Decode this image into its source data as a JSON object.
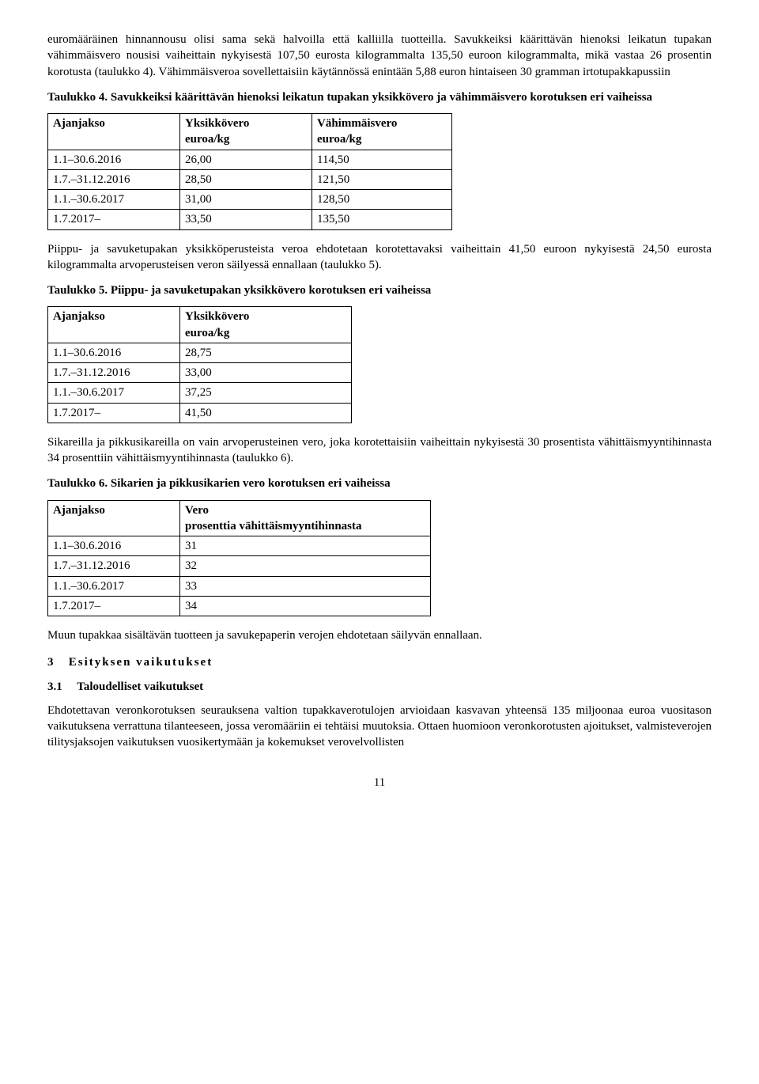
{
  "para1": "euromääräinen hinnannousu olisi sama sekä halvoilla että kalliilla tuotteilla. Savukkeiksi käärittävän hienoksi leikatun tupakan vähimmäisvero nousisi vaiheittain nykyisestä 107,50 eurosta kilogrammalta 135,50 euroon kilogrammalta, mikä vastaa 26 prosentin korotusta (taulukko 4). Vähimmäisveroa sovellettaisiin käytännössä enintään 5,88 euron hintaiseen 30 gramman irtotupakkapussiin",
  "table4": {
    "title": "Taulukko 4. Savukkeiksi käärittävän hienoksi leikatun tupakan yksikkövero ja vähimmäisvero korotuksen eri vaiheissa",
    "headers": [
      "Ajanjakso",
      "Yksikkövero euroa/kg",
      "Vähimmäisvero euroa/kg"
    ],
    "rows": [
      [
        "1.1–30.6.2016",
        "26,00",
        "114,50"
      ],
      [
        "1.7.–31.12.2016",
        "28,50",
        "121,50"
      ],
      [
        "1.1.–30.6.2017",
        "31,00",
        "128,50"
      ],
      [
        "1.7.2017–",
        "33,50",
        "135,50"
      ]
    ],
    "col_widths": [
      "150px",
      "150px",
      "160px"
    ]
  },
  "para2": "Piippu- ja savuketupakan yksikköperusteista veroa ehdotetaan korotettavaksi vaiheittain 41,50 euroon nykyisestä 24,50 eurosta kilogrammalta arvoperusteisen veron säilyessä ennallaan (taulukko 5).",
  "table5": {
    "title": "Taulukko 5. Piippu- ja savuketupakan yksikkövero korotuksen eri vaiheissa",
    "headers": [
      "Ajanjakso",
      "Yksikkövero euroa/kg"
    ],
    "rows": [
      [
        "1.1–30.6.2016",
        "28,75"
      ],
      [
        "1.7.–31.12.2016",
        "33,00"
      ],
      [
        "1.1.–30.6.2017",
        "37,25"
      ],
      [
        "1.7.2017–",
        "41,50"
      ]
    ],
    "col_widths": [
      "150px",
      "200px"
    ]
  },
  "para3": "Sikareilla ja pikkusikareilla on vain arvoperusteinen vero, joka korotettaisiin vaiheittain nykyisestä 30 prosentista vähittäismyyntihinnasta 34 prosenttiin vähittäismyyntihinnasta (taulukko 6).",
  "table6": {
    "title": "Taulukko 6. Sikarien ja pikkusikarien vero korotuksen eri vaiheissa",
    "headers": [
      "Ajanjakso",
      "Vero prosenttia vähittäismyyntihinnasta"
    ],
    "rows": [
      [
        "1.1–30.6.2016",
        "31"
      ],
      [
        "1.7.–31.12.2016",
        "32"
      ],
      [
        "1.1.–30.6.2017",
        "33"
      ],
      [
        "1.7.2017–",
        "34"
      ]
    ],
    "col_widths": [
      "150px",
      "300px"
    ]
  },
  "para4": "Muun tupakkaa sisältävän tuotteen ja savukepaperin verojen ehdotetaan säilyvän ennallaan.",
  "section3": {
    "num": "3",
    "title": "Esityksen vaikutukset"
  },
  "section31": {
    "num": "3.1",
    "title": "Taloudelliset vaikutukset"
  },
  "para5": "Ehdotettavan veronkorotuksen seurauksena valtion tupakkaverotulojen arvioidaan kasvavan yhteensä 135 miljoonaa euroa vuositason vaikutuksena verrattuna tilanteeseen, jossa veromääriin ei tehtäisi muutoksia. Ottaen huomioon veronkorotusten ajoitukset, valmisteverojen tilitysjaksojen vaikutuksen vuosikertymään ja kokemukset verovelvollisten",
  "page_number": "11"
}
